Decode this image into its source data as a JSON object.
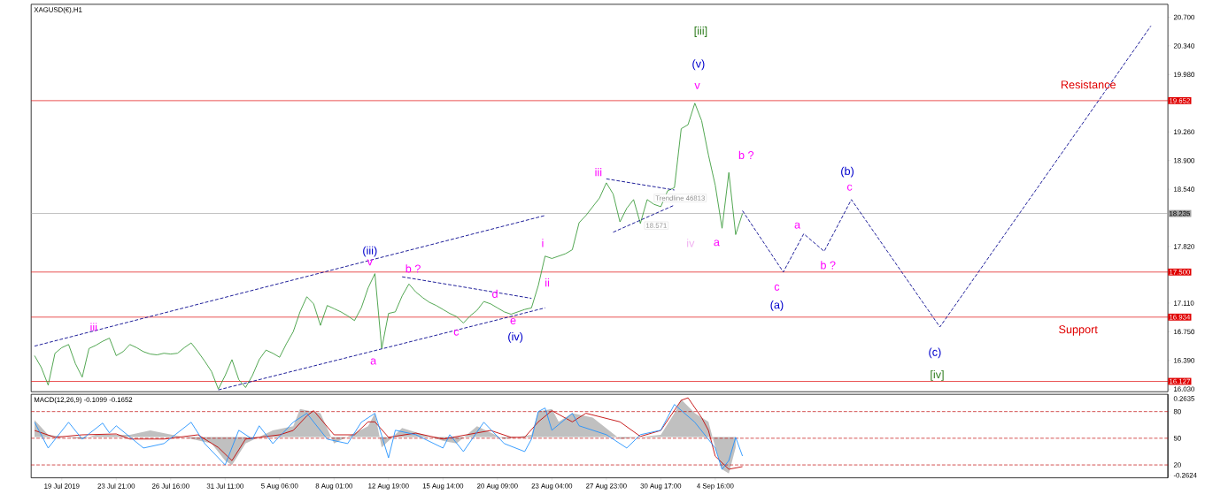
{
  "chart_data": [
    {
      "type": "line",
      "title": "XAGUSD(€),H1",
      "categories": [
        null,
        null,
        null,
        null,
        null,
        null,
        null,
        null,
        null,
        null,
        null,
        null,
        null,
        null,
        null,
        null,
        null,
        null,
        null,
        null,
        null,
        null,
        null,
        null,
        null,
        null,
        null,
        null,
        null,
        null,
        null,
        null,
        null,
        null,
        null,
        null,
        null,
        null,
        null,
        null,
        null,
        null,
        null,
        null,
        null,
        null,
        null,
        null,
        null,
        null,
        null,
        null,
        null,
        null,
        null,
        null,
        null,
        null,
        null,
        null,
        null,
        null,
        null,
        null,
        null,
        null,
        null,
        null,
        null,
        null,
        null,
        null,
        null,
        null,
        null,
        null,
        null,
        null,
        null,
        null,
        null,
        null,
        null,
        null,
        null,
        null,
        null,
        null,
        null,
        null,
        null,
        null,
        null,
        null,
        null,
        null,
        null,
        null,
        null,
        null,
        null,
        null,
        null,
        null,
        null,
        null,
        null,
        null,
        null,
        null,
        null,
        null,
        null,
        null,
        null,
        null,
        null,
        null,
        null,
        null,
        null,
        null,
        null,
        null,
        null,
        null,
        null,
        null,
        null,
        null,
        null,
        null,
        null,
        null,
        null,
        null,
        null,
        null,
        null,
        null,
        null,
        null,
        null,
        null,
        null,
        null,
        null,
        null,
        null,
        null,
        null,
        null,
        null,
        null,
        null,
        null,
        null,
        null,
        null,
        null,
        null,
        null,
        null,
        null,
        null,
        null,
        null
      ],
      "ylim": [
        15.997,
        20.862
      ],
      "yticks": [
        {
          "value": 20.7,
          "label": "20.700"
        },
        {
          "value": 20.34,
          "label": "20.340"
        },
        {
          "value": 19.98,
          "label": "19.980"
        },
        {
          "value": 19.26,
          "label": "19.260"
        },
        {
          "value": 18.9,
          "label": "18.900"
        },
        {
          "value": 18.54,
          "label": "18.540"
        },
        {
          "value": 17.82,
          "label": "17.820"
        },
        {
          "value": 17.11,
          "label": "17.110"
        },
        {
          "value": 16.75,
          "label": "16.750"
        },
        {
          "value": 16.39,
          "label": "16.390"
        },
        {
          "value": 16.03,
          "label": "16.030"
        }
      ],
      "tick_labels": "y",
      "series": [
        {
          "color": "#3a9a3a",
          "values": [
            16.45,
            16.3,
            16.08,
            16.48,
            16.55,
            16.59,
            16.35,
            16.18,
            16.54,
            16.58,
            16.63,
            16.67,
            16.45,
            16.5,
            16.59,
            16.55,
            16.5,
            16.47,
            16.46,
            16.48,
            16.47,
            16.48,
            16.55,
            16.61,
            16.5,
            16.38,
            16.25,
            16.03,
            16.2,
            16.4,
            16.15,
            16.05,
            16.2,
            16.4,
            16.52,
            16.48,
            16.43,
            16.6,
            16.75,
            17.0,
            17.19,
            17.1,
            16.83,
            17.08,
            17.04,
            17.0,
            16.95,
            16.89,
            17.05,
            17.3,
            17.48,
            16.54,
            16.98,
            17.0,
            17.2,
            17.35,
            17.25,
            17.18,
            17.12,
            17.08,
            17.03,
            16.98,
            16.94,
            16.86,
            16.95,
            17.02,
            17.13,
            17.1,
            17.05,
            17.0,
            16.97,
            17.0,
            17.03,
            17.05,
            17.33,
            17.7,
            17.67,
            17.7,
            17.73,
            17.78,
            18.12,
            18.21,
            18.32,
            18.43,
            18.62,
            18.48,
            18.13,
            18.3,
            18.41,
            18.11,
            18.41,
            18.35,
            18.32,
            18.52,
            18.56,
            19.3,
            19.35,
            19.62,
            19.4,
            18.97,
            18.59,
            18.05,
            18.75,
            17.97,
            18.235,
            null,
            null,
            null,
            null,
            null,
            null,
            null,
            null,
            null,
            null,
            null,
            null,
            null,
            null,
            null,
            null,
            null,
            null,
            null,
            null,
            null,
            null,
            null,
            null,
            null,
            null,
            null,
            null,
            null,
            null,
            null,
            null,
            null,
            null,
            null,
            null,
            null,
            null,
            null,
            null,
            null,
            null,
            null,
            null,
            null,
            null,
            null,
            null,
            null,
            null,
            null,
            null,
            null,
            null,
            null,
            null,
            null,
            null,
            null,
            null,
            null,
            null
          ]
        },
        {
          "color": "#00008b",
          "line_style": "dashed",
          "values": [
            null,
            null,
            null,
            null,
            null,
            null,
            null,
            null,
            null,
            null,
            null,
            null,
            null,
            null,
            null,
            null,
            null,
            null,
            null,
            null,
            null,
            null,
            null,
            null,
            null,
            null,
            null,
            null,
            null,
            null,
            null,
            null,
            null,
            null,
            null,
            null,
            null,
            null,
            null,
            null,
            null,
            null,
            null,
            null,
            null,
            null,
            null,
            null,
            null,
            null,
            null,
            null,
            null,
            null,
            null,
            null,
            null,
            null,
            null,
            null,
            null,
            null,
            null,
            null,
            null,
            null,
            null,
            null,
            null,
            null,
            null,
            null,
            null,
            null,
            null,
            null,
            null,
            null,
            null,
            null,
            null,
            null,
            null,
            null,
            null,
            null,
            null,
            null,
            null,
            null,
            null,
            null,
            null,
            null,
            null,
            null,
            null,
            null,
            null,
            null,
            null,
            null,
            null,
            null,
            18.27,
            null,
            null,
            null,
            null,
            null,
            17.5,
            null,
            null,
            17.98,
            null,
            null,
            17.76,
            null,
            null,
            null,
            18.41,
            null,
            null,
            null,
            null,
            null,
            null,
            null,
            null,
            null,
            null,
            null,
            null,
            16.81,
            null,
            null,
            null,
            null,
            null,
            null,
            null,
            null,
            null,
            null,
            null,
            null,
            null,
            null,
            null,
            null,
            null,
            null,
            null,
            null,
            null,
            null,
            null,
            null,
            null,
            null,
            null,
            null,
            null,
            null,
            20.59,
            null,
            null
          ]
        },
        {
          "color": "#00008b",
          "line_style": "dashed",
          "values": [
            16.57,
            null,
            null,
            null,
            null,
            null,
            null,
            null,
            null,
            null,
            null,
            null,
            null,
            null,
            null,
            null,
            null,
            null,
            null,
            null,
            null,
            null,
            null,
            null,
            null,
            null,
            null,
            null,
            null,
            null,
            null,
            null,
            null,
            null,
            null,
            null,
            null,
            null,
            null,
            null,
            null,
            null,
            null,
            null,
            null,
            null,
            null,
            null,
            null,
            null,
            null,
            null,
            null,
            null,
            null,
            null,
            null,
            null,
            null,
            null,
            null,
            null,
            null,
            null,
            null,
            null,
            null,
            null,
            null,
            null,
            null,
            null,
            null,
            null,
            null,
            18.21,
            null,
            null,
            null,
            null,
            null,
            null,
            null,
            null,
            null,
            null,
            null,
            null,
            null,
            null,
            null,
            null,
            null,
            null,
            null,
            null,
            null,
            null,
            null,
            null,
            null,
            null,
            null,
            null,
            null,
            null,
            null,
            null,
            null,
            null,
            null,
            null,
            null,
            null,
            null,
            null,
            null,
            null,
            null,
            null,
            null,
            null,
            null,
            null,
            null,
            null,
            null,
            null,
            null,
            null,
            null,
            null,
            null,
            null,
            null,
            null,
            null,
            null,
            null,
            null,
            null,
            null,
            null,
            null,
            null,
            null,
            null,
            null,
            null,
            null,
            null,
            null,
            null,
            null,
            null,
            null,
            null,
            null,
            null,
            null,
            null,
            null,
            null,
            null,
            null,
            null,
            null
          ]
        },
        {
          "color": "#00008b",
          "line_style": "dashed",
          "values": [
            null,
            null,
            null,
            null,
            null,
            null,
            null,
            null,
            null,
            null,
            null,
            null,
            null,
            null,
            null,
            null,
            null,
            null,
            null,
            null,
            null,
            null,
            null,
            null,
            null,
            null,
            null,
            16.02,
            null,
            null,
            null,
            null,
            null,
            null,
            null,
            null,
            null,
            null,
            null,
            null,
            null,
            null,
            null,
            null,
            null,
            null,
            null,
            null,
            null,
            null,
            null,
            null,
            null,
            null,
            null,
            null,
            null,
            null,
            null,
            null,
            null,
            null,
            null,
            null,
            null,
            null,
            null,
            null,
            null,
            null,
            null,
            null,
            null,
            null,
            null,
            17.05,
            null,
            null,
            null,
            null,
            null,
            null,
            null,
            null,
            null,
            null,
            null,
            null,
            null,
            null,
            null,
            null,
            null,
            null,
            null,
            null,
            null,
            null,
            null,
            null,
            null,
            null,
            null,
            null,
            null,
            null,
            null,
            null,
            null,
            null,
            null,
            null,
            null,
            null,
            null,
            null,
            null,
            null,
            null,
            null,
            null,
            null,
            null,
            null,
            null,
            null,
            null,
            null,
            null,
            null,
            null,
            null,
            null,
            null,
            null,
            null,
            null,
            null,
            null,
            null,
            null,
            null,
            null,
            null,
            null,
            null,
            null,
            null,
            null,
            null,
            null,
            null,
            null,
            null,
            null,
            null,
            null,
            null,
            null,
            null,
            null,
            null,
            null,
            null,
            null,
            null,
            null
          ]
        },
        {
          "color": "#00008b",
          "line_style": "dashed",
          "values": [
            null,
            null,
            null,
            null,
            null,
            null,
            null,
            null,
            null,
            null,
            null,
            null,
            null,
            null,
            null,
            null,
            null,
            null,
            null,
            null,
            null,
            null,
            null,
            null,
            null,
            null,
            null,
            null,
            null,
            null,
            null,
            null,
            null,
            null,
            null,
            null,
            null,
            null,
            null,
            null,
            null,
            null,
            null,
            null,
            null,
            null,
            null,
            null,
            null,
            null,
            null,
            null,
            null,
            null,
            17.44,
            null,
            null,
            null,
            null,
            null,
            null,
            null,
            null,
            null,
            null,
            null,
            null,
            null,
            null,
            null,
            null,
            null,
            null,
            17.17,
            null,
            null,
            null,
            null,
            null,
            null,
            null,
            null,
            null,
            null,
            null,
            null,
            null,
            null,
            null,
            null,
            null,
            null,
            null,
            null,
            null,
            null,
            null,
            null,
            null,
            null,
            null,
            null,
            null,
            null,
            null,
            null,
            null,
            null,
            null,
            null,
            null,
            null,
            null,
            null,
            null,
            null,
            null,
            null,
            null,
            null,
            null,
            null,
            null,
            null,
            null,
            null,
            null,
            null,
            null,
            null,
            null,
            null,
            null,
            null,
            null,
            null,
            null,
            null,
            null,
            null,
            null,
            null,
            null,
            null,
            null,
            null,
            null,
            null,
            null,
            null,
            null,
            null,
            null,
            null,
            null,
            null,
            null,
            null,
            null,
            null,
            null,
            null,
            null,
            null,
            null,
            null,
            null
          ]
        },
        {
          "color": "#00008b",
          "line_style": "dashed",
          "values": [
            null,
            null,
            null,
            null,
            null,
            null,
            null,
            null,
            null,
            null,
            null,
            null,
            null,
            null,
            null,
            null,
            null,
            null,
            null,
            null,
            null,
            null,
            null,
            null,
            null,
            null,
            null,
            null,
            null,
            null,
            null,
            null,
            null,
            null,
            null,
            null,
            null,
            null,
            null,
            null,
            null,
            null,
            null,
            null,
            null,
            null,
            null,
            null,
            null,
            null,
            null,
            null,
            null,
            null,
            null,
            null,
            null,
            null,
            null,
            null,
            null,
            null,
            null,
            null,
            null,
            null,
            null,
            null,
            null,
            null,
            null,
            null,
            null,
            null,
            null,
            null,
            null,
            null,
            null,
            null,
            null,
            null,
            null,
            null,
            18.67,
            null,
            null,
            null,
            null,
            null,
            null,
            null,
            null,
            null,
            18.53,
            null,
            null,
            null,
            null,
            null,
            null,
            null,
            null,
            null,
            null,
            null,
            null,
            null,
            null,
            null,
            null,
            null,
            null,
            null,
            null,
            null,
            null,
            null,
            null,
            null,
            null,
            null,
            null,
            null,
            null,
            null,
            null,
            null,
            null,
            null,
            null,
            null,
            null,
            null,
            null,
            null,
            null,
            null,
            null,
            null,
            null,
            null,
            null,
            null,
            null,
            null,
            null,
            null,
            null,
            null,
            null,
            null,
            null,
            null,
            null,
            null,
            null,
            null,
            null,
            null,
            null,
            null,
            null,
            null,
            null,
            null,
            null
          ]
        },
        {
          "color": "#00008b",
          "line_style": "dashed",
          "values": [
            null,
            null,
            null,
            null,
            null,
            null,
            null,
            null,
            null,
            null,
            null,
            null,
            null,
            null,
            null,
            null,
            null,
            null,
            null,
            null,
            null,
            null,
            null,
            null,
            null,
            null,
            null,
            null,
            null,
            null,
            null,
            null,
            null,
            null,
            null,
            null,
            null,
            null,
            null,
            null,
            null,
            null,
            null,
            null,
            null,
            null,
            null,
            null,
            null,
            null,
            null,
            null,
            null,
            null,
            null,
            null,
            null,
            null,
            null,
            null,
            null,
            null,
            null,
            null,
            null,
            null,
            null,
            null,
            null,
            null,
            null,
            null,
            null,
            null,
            null,
            null,
            null,
            null,
            null,
            null,
            null,
            null,
            null,
            null,
            null,
            18.0,
            null,
            null,
            null,
            null,
            null,
            null,
            null,
            null,
            18.34,
            null,
            null,
            null,
            null,
            null,
            null,
            null,
            null,
            null,
            null,
            null,
            null,
            null,
            null,
            null,
            null,
            null,
            null,
            null,
            null,
            null,
            null,
            null,
            null,
            null,
            null,
            null,
            null,
            null,
            null,
            null,
            null,
            null,
            null,
            null,
            null,
            null,
            null,
            null,
            null,
            null,
            null,
            null,
            null,
            null,
            null,
            null,
            null,
            null,
            null,
            null,
            null,
            null,
            null,
            null,
            null,
            null,
            null,
            null,
            null,
            null,
            null,
            null,
            null,
            null,
            null,
            null,
            null,
            null,
            null,
            null,
            null
          ]
        }
      ],
      "ref_lines": [
        {
          "axis": "y",
          "value": 19.652,
          "label": "19.652",
          "color": "#e00000"
        },
        {
          "axis": "y",
          "value": 18.235,
          "label": "18.235",
          "color": "#a0a0a0"
        },
        {
          "axis": "y",
          "value": 17.5,
          "label": "17.500",
          "color": "#e00000"
        },
        {
          "axis": "y",
          "value": 16.934,
          "label": "16.934",
          "color": "#e00000"
        },
        {
          "axis": "y",
          "value": 16.127,
          "label": "16.127",
          "color": "#e00000"
        }
      ],
      "annotations": [
        "Resistance",
        "Support",
        "Trendline 46813",
        "18.571",
        "iii",
        "(iii)",
        "v",
        "b ?",
        "a",
        "c",
        "d",
        "e",
        "(iv)",
        "i",
        "ii",
        "iii",
        "iv",
        "[iii]",
        "(v)",
        "v",
        "b ?",
        "a",
        "a",
        "c",
        "(a)",
        "b ?",
        "(b)",
        "c",
        "(c)",
        "[iv]"
      ]
    },
    {
      "type": "line",
      "title": "MACD(12,26,9) -0.1099 -0.1652",
      "categories": [
        null,
        null,
        null,
        null,
        "19 Jul 2019",
        null,
        null,
        null,
        null,
        null,
        null,
        null,
        "23 Jul 21:00",
        null,
        null,
        null,
        null,
        null,
        null,
        null,
        "26 Jul 16:00",
        null,
        null,
        null,
        null,
        null,
        null,
        null,
        "31 Jul 11:00",
        null,
        null,
        null,
        null,
        null,
        null,
        null,
        "5 Aug 06:00",
        null,
        null,
        null,
        null,
        null,
        null,
        null,
        "8 Aug 01:00",
        null,
        null,
        null,
        null,
        null,
        null,
        null,
        "12 Aug 19:00",
        null,
        null,
        null,
        null,
        null,
        null,
        null,
        "15 Aug 14:00",
        null,
        null,
        null,
        null,
        null,
        null,
        null,
        "20 Aug 09:00",
        null,
        null,
        null,
        null,
        null,
        null,
        null,
        "23 Aug 04:00",
        null,
        null,
        null,
        null,
        null,
        null,
        null,
        "27 Aug 23:00",
        null,
        null,
        null,
        null,
        null,
        null,
        null,
        "30 Aug 17:00",
        null,
        null,
        null,
        null,
        null,
        null,
        null,
        "4 Sep 16:00",
        null,
        null,
        null,
        null,
        null,
        null,
        null,
        null,
        null,
        null,
        null,
        null,
        null,
        null,
        null,
        null,
        null,
        null,
        null,
        null,
        null,
        null,
        null,
        null,
        null,
        null,
        null,
        null,
        null,
        null,
        null,
        null,
        null,
        null,
        null,
        null,
        null,
        null,
        null,
        null,
        null,
        null,
        null,
        null,
        null,
        null,
        null,
        null,
        null,
        null,
        null,
        null,
        null,
        null,
        null,
        null,
        null,
        null,
        null,
        null,
        null,
        null,
        null,
        null,
        null,
        null
      ],
      "ylim": [
        -0.28,
        0.293
      ],
      "y2lim": [
        5.5,
        99.4
      ],
      "yticks": [
        0.2635,
        -0.2624
      ],
      "y2ticks": [
        20,
        50,
        80
      ],
      "series": [
        {
          "type": "area",
          "color": "#c0c0c0",
          "values": [
            0.116,
            null,
            0.015,
            null,
            null,
            null,
            null,
            -0.014,
            null,
            0.015,
            null,
            null,
            null,
            null,
            0.015,
            null,
            null,
            0.045,
            null,
            null,
            null,
            null,
            -0.002,
            null,
            null,
            null,
            -0.044,
            null,
            -0.162,
            -0.192,
            null,
            -0.044,
            null,
            null,
            null,
            0.045,
            null,
            null,
            0.074,
            0.193,
            null,
            null,
            0.163,
            null,
            -0.044,
            null,
            null,
            null,
            null,
            0.074,
            0.163,
            -0.072,
            null,
            null,
            0.062,
            null,
            null,
            null,
            null,
            null,
            -0.026,
            null,
            -0.044,
            null,
            null,
            0.074,
            null,
            null,
            null,
            -0.014,
            null,
            null,
            null,
            0.015,
            0.175,
            null,
            0.193,
            0.104,
            null,
            0.163,
            null,
            null,
            0.133,
            null,
            null,
            null,
            -0.014,
            null,
            null,
            null,
            null,
            null,
            0.015,
            null,
            0.163,
            0.258,
            null,
            0.163,
            null,
            0.104,
            -0.072,
            -0.221,
            -0.251,
            -0.072,
            null,
            null,
            null,
            null,
            null,
            null,
            null,
            null,
            null,
            null,
            null,
            null,
            null,
            null,
            null,
            null,
            null,
            null,
            null,
            null,
            null,
            null,
            null,
            null,
            null,
            null,
            null,
            null,
            null,
            null,
            null,
            null,
            null,
            null,
            null,
            null,
            null,
            null,
            null,
            null,
            null,
            null,
            null,
            null,
            null,
            null,
            null,
            null,
            null,
            null,
            null,
            null,
            null,
            null,
            null,
            null,
            null,
            null,
            null,
            null,
            null,
            null,
            null
          ]
        },
        {
          "type": "line",
          "color": "#c00000",
          "values": [
            0.045,
            null,
            null,
            -0.002,
            null,
            null,
            null,
            0.015,
            null,
            null,
            null,
            null,
            0.021,
            null,
            -0.014,
            null,
            null,
            null,
            null,
            -0.014,
            null,
            null,
            null,
            null,
            0.015,
            null,
            null,
            -0.072,
            null,
            -0.162,
            null,
            -0.014,
            null,
            null,
            null,
            null,
            0.015,
            null,
            0.045,
            null,
            0.145,
            0.181,
            null,
            null,
            0.015,
            null,
            null,
            0.015,
            null,
            0.104,
            0.104,
            null,
            -0.002,
            null,
            null,
            null,
            0.027,
            null,
            null,
            null,
            -0.014,
            null,
            null,
            null,
            null,
            null,
            null,
            0.045,
            null,
            null,
            -0.002,
            null,
            -0.002,
            null,
            0.104,
            null,
            0.181,
            null,
            null,
            0.104,
            null,
            0.163,
            null,
            null,
            null,
            null,
            0.104,
            null,
            null,
            0.004,
            null,
            null,
            0.045,
            null,
            null,
            0.252,
            0.269,
            null,
            0.133,
            0.045,
            -0.132,
            null,
            -0.221,
            null,
            -0.203,
            null,
            null,
            null,
            null,
            null,
            null,
            null,
            null,
            null,
            null,
            null,
            null,
            null,
            null,
            null,
            null,
            null,
            null,
            null,
            null,
            null,
            null,
            null,
            null,
            null,
            null,
            null,
            null,
            null,
            null,
            null,
            null,
            null,
            null,
            null,
            null,
            null,
            null,
            null,
            null,
            null,
            null,
            null,
            null,
            null,
            null,
            null,
            null,
            null,
            null,
            null,
            null,
            null,
            null,
            null,
            null,
            null,
            null,
            null,
            null,
            null,
            null
          ]
        },
        {
          "type": "line",
          "axis": "y2",
          "color": "#1e90ff",
          "values": [
            68,
            null,
            39,
            null,
            null,
            68,
            null,
            49,
            null,
            null,
            67,
            56,
            64,
            null,
            null,
            null,
            39,
            null,
            null,
            44,
            null,
            null,
            null,
            68,
            null,
            44,
            null,
            null,
            20,
            null,
            59,
            null,
            49,
            64,
            null,
            44,
            null,
            null,
            68,
            null,
            78,
            null,
            null,
            49,
            null,
            null,
            44,
            null,
            68,
            null,
            78,
            null,
            28,
            59,
            null,
            null,
            54,
            null,
            null,
            null,
            39,
            54,
            null,
            35,
            null,
            null,
            68,
            null,
            null,
            44,
            null,
            null,
            35,
            49,
            80,
            84,
            59,
            null,
            null,
            78,
            64,
            null,
            null,
            null,
            54,
            null,
            null,
            39,
            null,
            54,
            null,
            null,
            59,
            null,
            88,
            null,
            null,
            68,
            null,
            null,
            39,
            15,
            25,
            51,
            30,
            null,
            null,
            null,
            null,
            null,
            null,
            null,
            null,
            null,
            null,
            null,
            null,
            null,
            null,
            null,
            null,
            null,
            null,
            null,
            null,
            null,
            null,
            null,
            null,
            null,
            null,
            null,
            null,
            null,
            null,
            null,
            null,
            null,
            null,
            null,
            null,
            null,
            null,
            null,
            null,
            null,
            null,
            null,
            null,
            null,
            null,
            null,
            null,
            null,
            null,
            null,
            null,
            null,
            null,
            null,
            null,
            null,
            null,
            null,
            null,
            null,
            null
          ]
        }
      ],
      "ref_lines": [
        {
          "axis": "y2",
          "value": 80,
          "color": "#c00000",
          "line_style": "dashed"
        },
        {
          "axis": "y2",
          "value": 50,
          "color": "#c00000",
          "line_style": "dashed"
        },
        {
          "axis": "y2",
          "value": 20,
          "color": "#c00000",
          "line_style": "dashed"
        }
      ]
    }
  ]
}
